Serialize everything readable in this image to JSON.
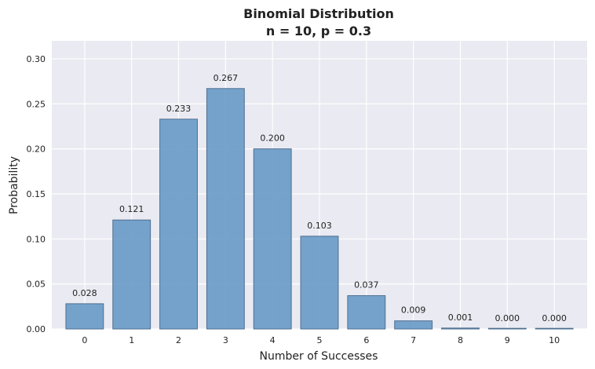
{
  "chart_data": {
    "type": "bar",
    "title": "Binomial Distribution",
    "subtitle": "n = 10, p = 0.3",
    "xlabel": "Number of Successes",
    "ylabel": "Probability",
    "categories": [
      "0",
      "1",
      "2",
      "3",
      "4",
      "5",
      "6",
      "7",
      "8",
      "9",
      "10"
    ],
    "values": [
      0.028,
      0.121,
      0.233,
      0.267,
      0.2,
      0.103,
      0.037,
      0.009,
      0.001,
      0.0,
      0.0
    ],
    "data_labels": [
      "0.028",
      "0.121",
      "0.233",
      "0.267",
      "0.200",
      "0.103",
      "0.037",
      "0.009",
      "0.001",
      "0.000",
      "0.000"
    ],
    "ylim": [
      0,
      0.32
    ],
    "yticks": [
      "0.00",
      "0.05",
      "0.10",
      "0.15",
      "0.20",
      "0.25",
      "0.30"
    ],
    "ytick_values": [
      0,
      0.05,
      0.1,
      0.15,
      0.2,
      0.25,
      0.3
    ],
    "grid": true,
    "colors": {
      "bar": "#6a9bc8",
      "bar_edge": "#4d6f90",
      "plot_background": "#eaeaf2",
      "grid": "#ffffff"
    }
  }
}
